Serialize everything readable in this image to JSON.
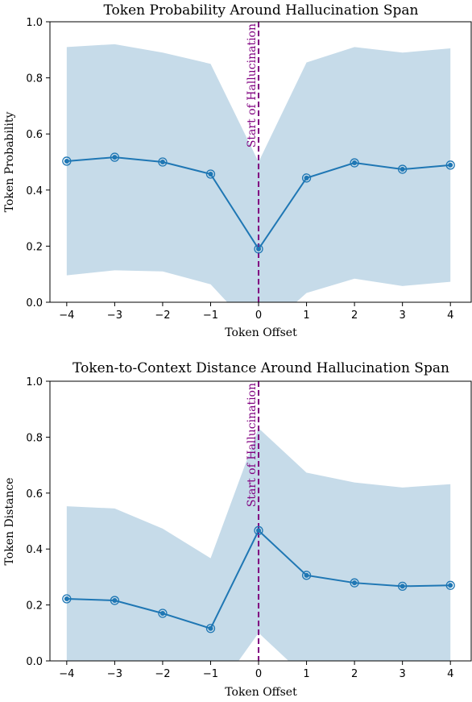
{
  "colors": {
    "line": "#1f77b4",
    "band": "#c6dbe9",
    "marker_line": "#800080",
    "axes": "#000000"
  },
  "chart_data": [
    {
      "type": "line",
      "title": "Token Probability Around Hallucination Span",
      "xlabel": "Token Offset",
      "ylabel": "Token Probability",
      "x": [
        -4,
        -3,
        -2,
        -1,
        0,
        1,
        2,
        3,
        4
      ],
      "x_tick_labels": [
        "−4",
        "−3",
        "−2",
        "−1",
        "0",
        "1",
        "2",
        "3",
        "4"
      ],
      "y_ticks": [
        "0.0",
        "0.2",
        "0.4",
        "0.6",
        "0.8",
        "1.0"
      ],
      "xlim": [
        -4.35,
        4.45
      ],
      "ylim": [
        0,
        1
      ],
      "series": [
        {
          "values": [
            0.503,
            0.517,
            0.5,
            0.457,
            0.19,
            0.443,
            0.497,
            0.474,
            0.489
          ],
          "band_upper": [
            0.91,
            0.92,
            0.89,
            0.85,
            0.5,
            0.855,
            0.91,
            0.89,
            0.905
          ],
          "band_lower": [
            0.096,
            0.114,
            0.11,
            0.064,
            -0.12,
            0.033,
            0.084,
            0.058,
            0.073
          ]
        }
      ],
      "vline": {
        "x": 0,
        "label": "Start of Hallucination"
      },
      "grid": false
    },
    {
      "type": "line",
      "title": "Token-to-Context Distance Around Hallucination Span",
      "xlabel": "Token Offset",
      "ylabel": "Token Distance",
      "x": [
        -4,
        -3,
        -2,
        -1,
        0,
        1,
        2,
        3,
        4
      ],
      "x_tick_labels": [
        "−4",
        "−3",
        "−2",
        "−1",
        "0",
        "1",
        "2",
        "3",
        "4"
      ],
      "y_ticks": [
        "0.0",
        "0.2",
        "0.4",
        "0.6",
        "0.8",
        "1.0"
      ],
      "xlim": [
        -4.35,
        4.45
      ],
      "ylim": [
        0,
        1
      ],
      "series": [
        {
          "values": [
            0.222,
            0.216,
            0.17,
            0.116,
            0.466,
            0.306,
            0.279,
            0.267,
            0.27
          ],
          "band_upper": [
            0.553,
            0.545,
            0.473,
            0.367,
            0.832,
            0.673,
            0.638,
            0.62,
            0.632
          ],
          "band_lower": [
            -0.1,
            -0.1,
            -0.13,
            -0.14,
            0.1,
            -0.06,
            -0.08,
            -0.085,
            -0.09
          ]
        }
      ],
      "vline": {
        "x": 0,
        "label": "Start of Hallucination"
      },
      "grid": false
    }
  ]
}
